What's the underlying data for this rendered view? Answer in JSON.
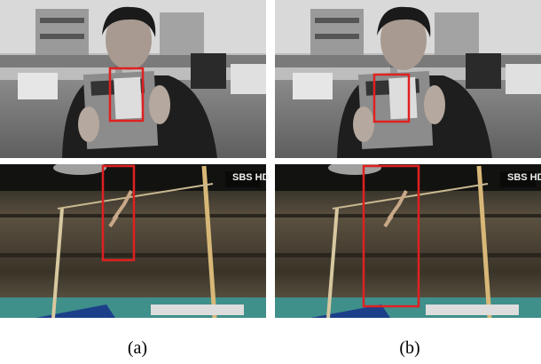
{
  "panels": [
    {
      "logo": "SBS HD"
    },
    {
      "logo": "SBS HD"
    }
  ],
  "captions": [
    "(a)",
    "(b)"
  ]
}
